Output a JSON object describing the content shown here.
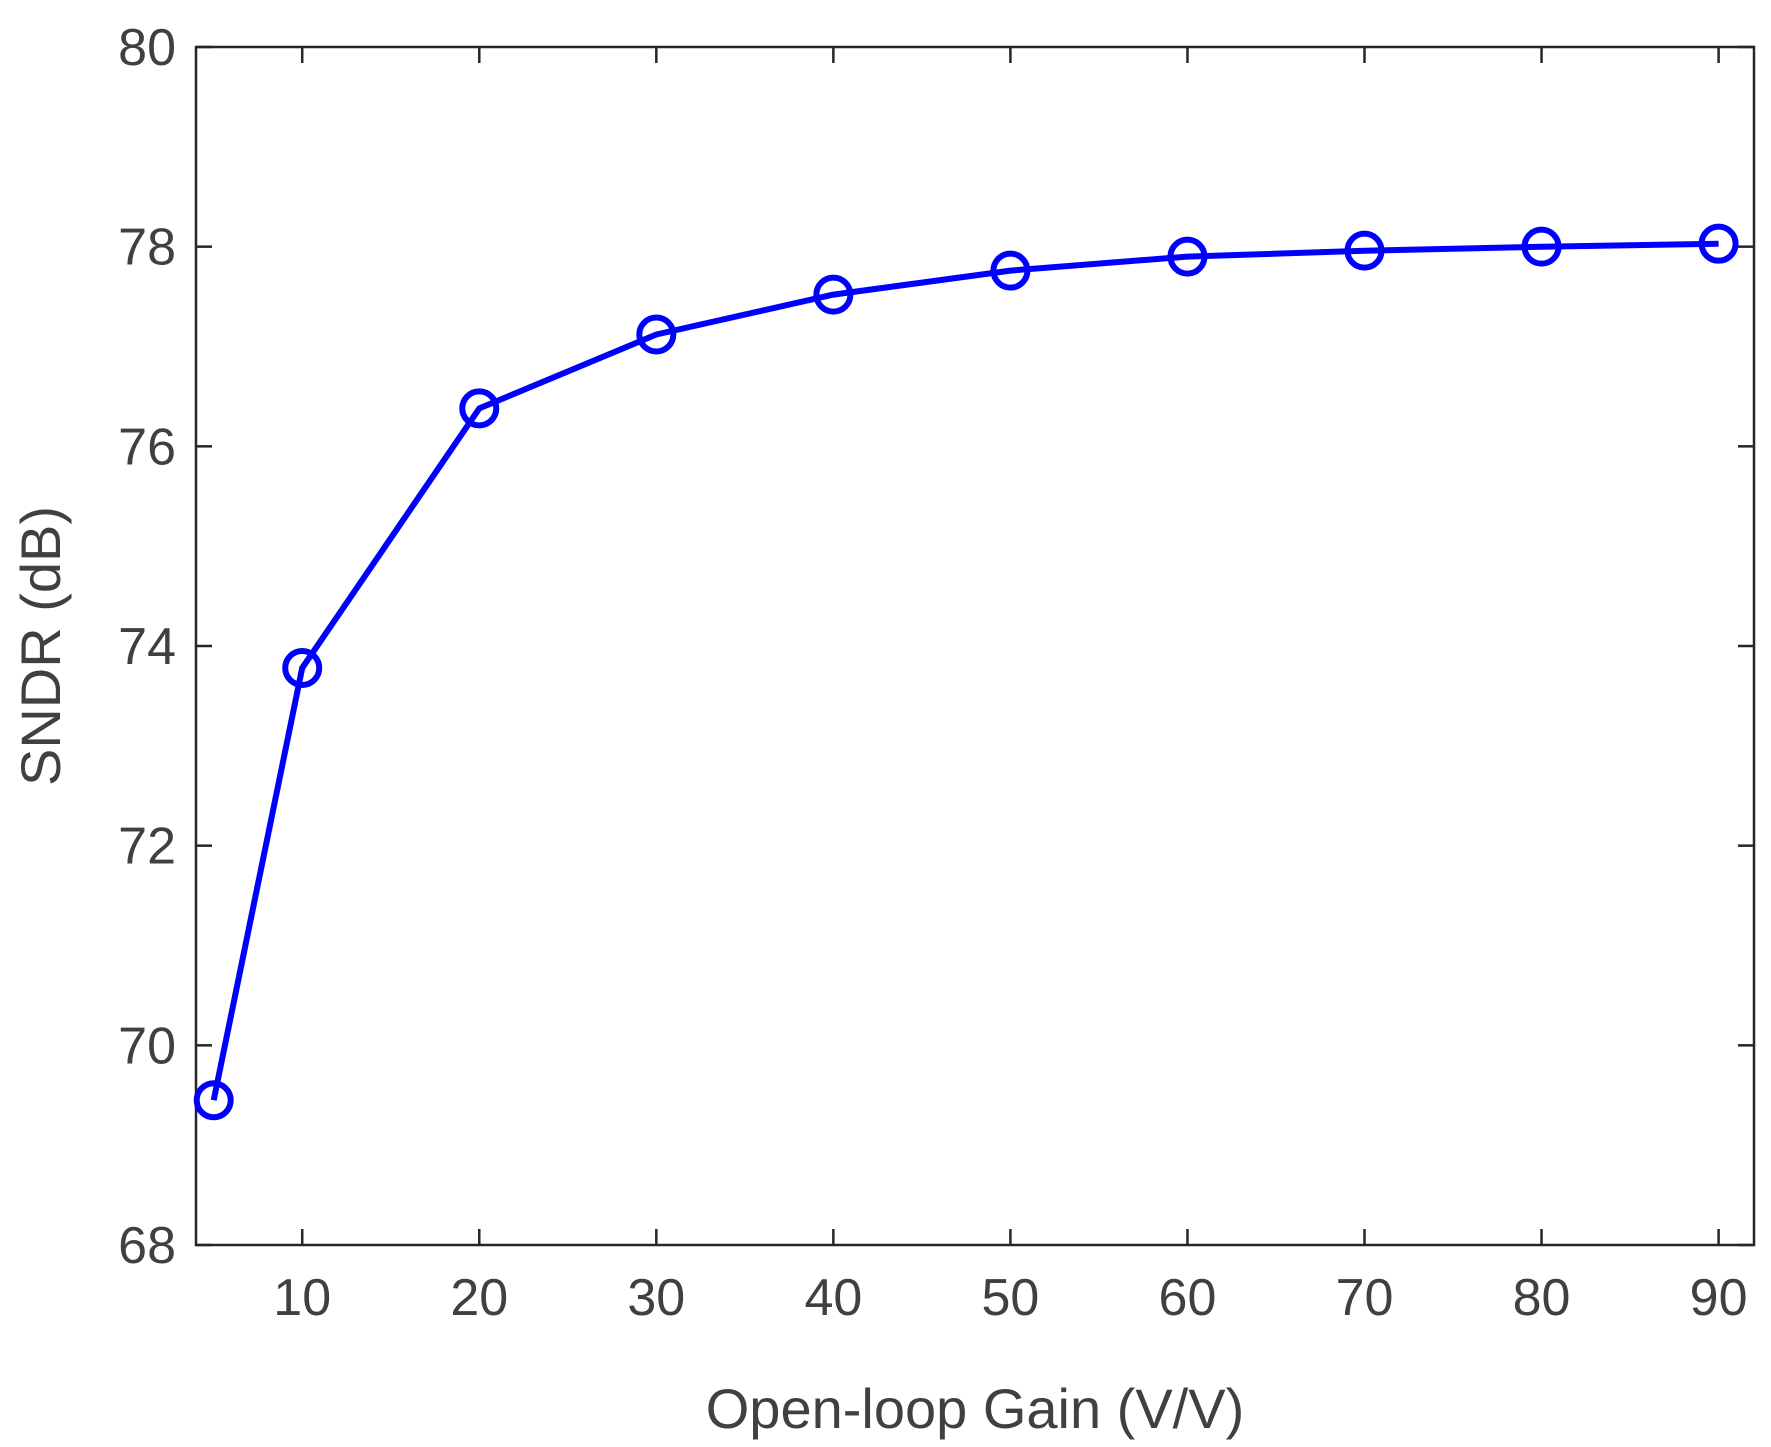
{
  "chart_data": {
    "type": "line",
    "title": "",
    "xlabel": "Open-loop Gain (V/V)",
    "ylabel": "SNDR (dB)",
    "xlim": [
      4,
      92
    ],
    "ylim": [
      68,
      80
    ],
    "xticks": [
      10,
      20,
      30,
      40,
      50,
      60,
      70,
      80,
      90
    ],
    "yticks": [
      68,
      70,
      72,
      74,
      76,
      78,
      80
    ],
    "grid": false,
    "legend": "none",
    "series": [
      {
        "color": "#0000ff",
        "marker": "circle-open",
        "x": [
          5,
          10,
          20,
          30,
          40,
          50,
          60,
          70,
          80,
          90
        ],
        "y": [
          69.45,
          73.78,
          76.38,
          77.12,
          77.52,
          77.76,
          77.9,
          77.96,
          78.0,
          78.03
        ]
      }
    ]
  }
}
